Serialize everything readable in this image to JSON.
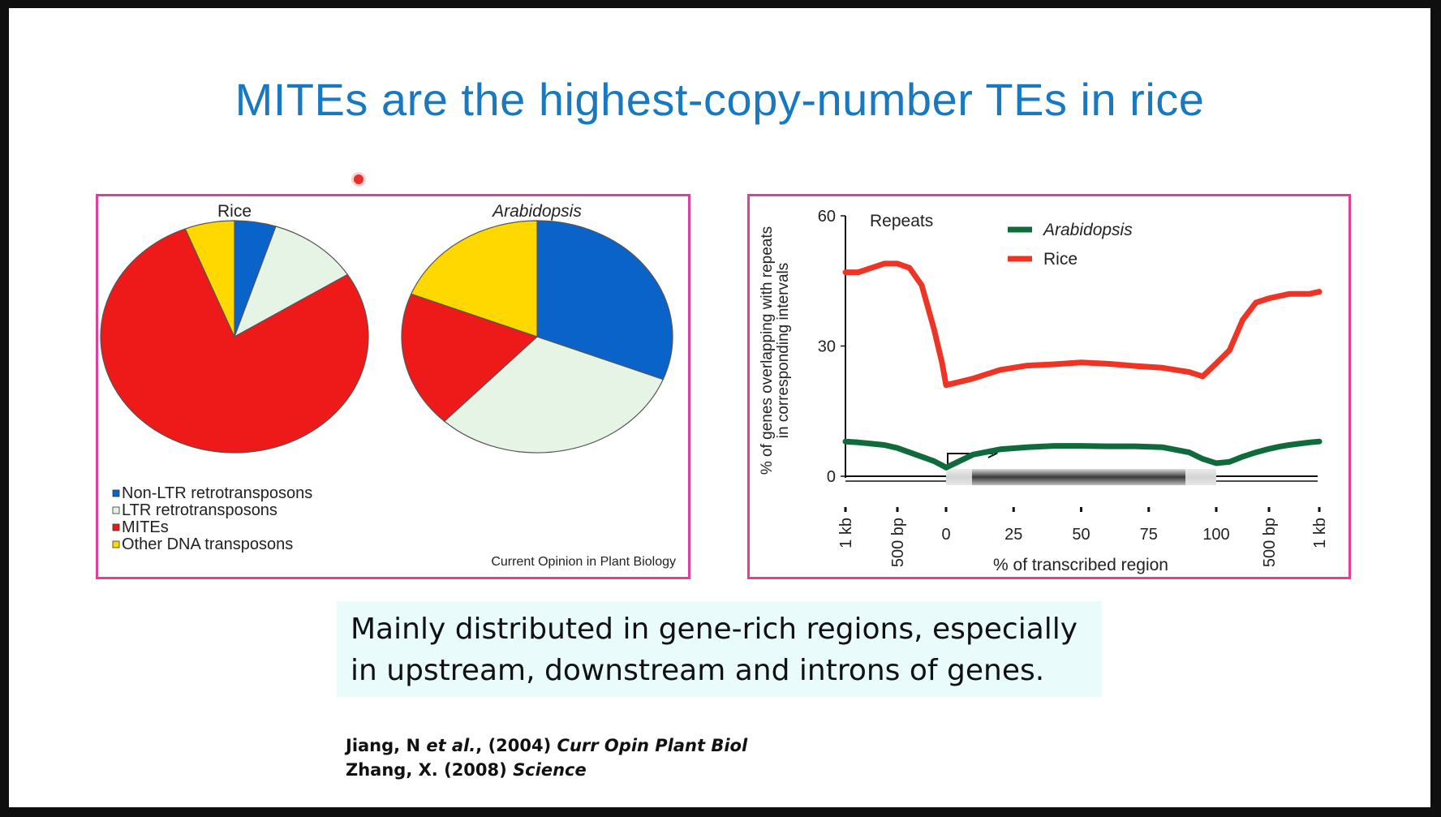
{
  "slide": {
    "title": "MITEs are the highest-copy-number TEs in rice",
    "note_line_1": "Mainly distributed in gene-rich regions, especially",
    "note_line_2": "in upstream, downstream and introns of genes.",
    "ref1_author": "Jiang, N ",
    "ref1_etal": "et al.",
    "ref1_year": ", (2004) ",
    "ref1_journal": "Curr Opin Plant Biol",
    "ref2_author": "Zhang, X. (2008)  ",
    "ref2_journal": "Science"
  },
  "chart_data": [
    {
      "type": "pie",
      "title": "Rice",
      "categories": [
        "Non-LTR retrotransposons",
        "LTR retrotransposons",
        "MITEs",
        "Other DNA transposons"
      ],
      "values": [
        5,
        11,
        78,
        6
      ],
      "colors": [
        "#0a63c9",
        "#e6f4e6",
        "#ee1a1a",
        "#ffd800"
      ],
      "start_angle_deg": 0,
      "direction": "clockwise"
    },
    {
      "type": "pie",
      "title": "Arabidopsis",
      "categories": [
        "Non-LTR retrotransposons",
        "LTR retrotransposons",
        "MITEs",
        "Other DNA transposons"
      ],
      "values": [
        31,
        31,
        19,
        19
      ],
      "colors": [
        "#0a63c9",
        "#e6f4e6",
        "#ee1a1a",
        "#ffd800"
      ],
      "start_angle_deg": 0,
      "direction": "clockwise"
    },
    {
      "type": "line",
      "title": "Repeats",
      "ylabel": "% of genes overlapping with repeats in corresponding intervals",
      "xlabel": "% of transcribed region",
      "ylim": [
        0,
        60
      ],
      "yticks": [
        0,
        30,
        60
      ],
      "xlim": [
        -2000,
        2000
      ],
      "xticks": [
        {
          "value": -1000,
          "label": "1 kb"
        },
        {
          "value": -500,
          "label": "500 bp"
        },
        {
          "value": 0,
          "label": "0"
        },
        {
          "value": 25,
          "label": "25"
        },
        {
          "value": 50,
          "label": "50"
        },
        {
          "value": 75,
          "label": "75"
        },
        {
          "value": 100,
          "label": "100"
        },
        {
          "value": 500,
          "label": "500 bp"
        },
        {
          "value": 1000,
          "label": "1 kb"
        }
      ],
      "legend_position": "top-right",
      "series": [
        {
          "name": "Arabidopsis",
          "color": "#0f6b3c",
          "x": [
            -1000,
            -875,
            -750,
            -625,
            -500,
            -375,
            -250,
            -125,
            -40,
            0,
            10,
            20,
            30,
            40,
            50,
            60,
            70,
            80,
            90,
            95,
            100,
            200,
            300,
            400,
            500,
            600,
            700,
            800,
            900,
            1000
          ],
          "y": [
            8,
            7.8,
            7.5,
            7.2,
            6.5,
            5.5,
            4.5,
            3.5,
            2.5,
            2,
            5,
            6.2,
            6.7,
            7,
            7,
            6.9,
            6.9,
            6.7,
            5.5,
            4,
            3,
            3.3,
            4.5,
            5.5,
            6.3,
            6.8,
            7.2,
            7.5,
            7.8,
            8
          ]
        },
        {
          "name": "Rice",
          "color": "#ee3525",
          "x": [
            -1000,
            -875,
            -750,
            -625,
            -500,
            -375,
            -250,
            -125,
            -40,
            0,
            10,
            20,
            30,
            40,
            50,
            60,
            70,
            80,
            90,
            95,
            100,
            200,
            300,
            400,
            500,
            600,
            700,
            800,
            900,
            1000
          ],
          "y": [
            47,
            47,
            48,
            49,
            49,
            48,
            44,
            34,
            26,
            21,
            22.5,
            24.5,
            25.5,
            25.8,
            26.2,
            25.9,
            25.4,
            25,
            24,
            23,
            26,
            29,
            36,
            40,
            41,
            41.5,
            42,
            42,
            42,
            42.5
          ]
        }
      ]
    }
  ],
  "left_panel": {
    "legend": [
      "Non-LTR retrotransposons",
      "LTR retrotransposons",
      "MITEs",
      "Other DNA transposons"
    ],
    "credit": "Current Opinion in Plant Biology"
  }
}
